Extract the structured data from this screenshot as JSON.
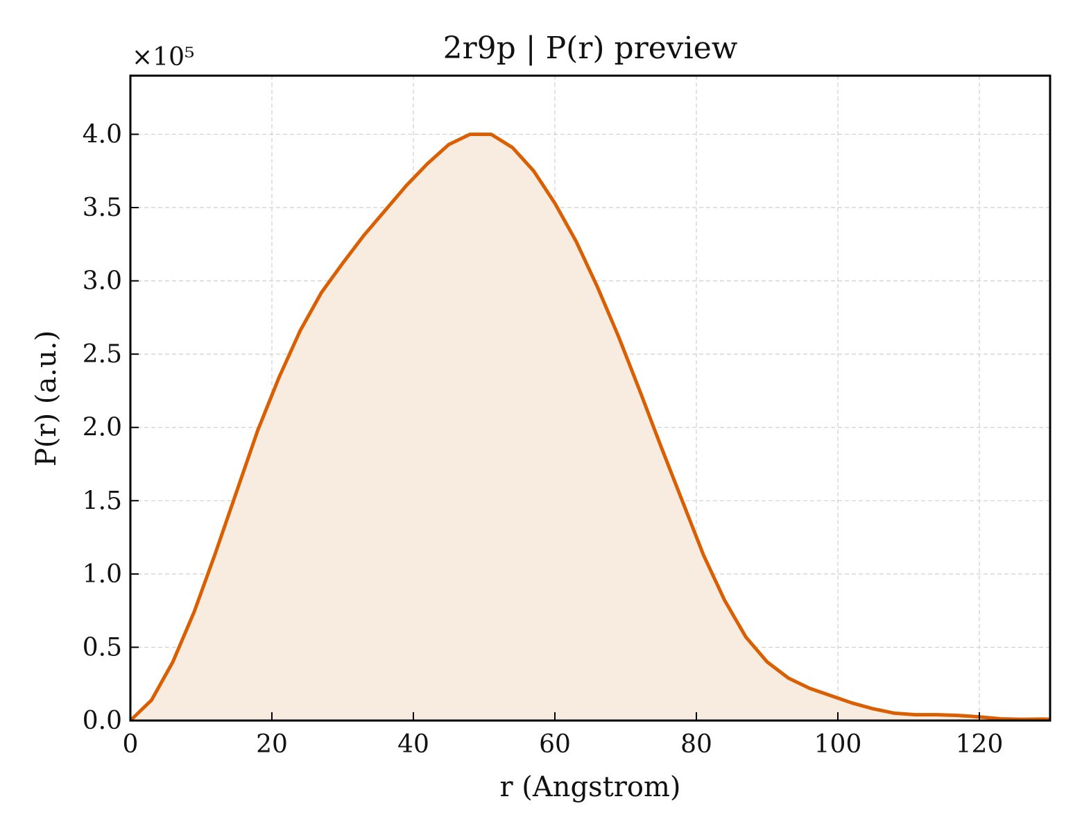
{
  "chart_data": {
    "type": "area",
    "title": "2r9p | P(r) preview",
    "xlabel": "r (Angstrom)",
    "ylabel": "P(r) (a.u.)",
    "y_multiplier_label": "×10⁵",
    "xlim": [
      0,
      130
    ],
    "ylim": [
      0,
      4.4
    ],
    "x_ticks": [
      0,
      20,
      40,
      60,
      80,
      100,
      120
    ],
    "y_ticks": [
      "0.0",
      "0.5",
      "1.0",
      "1.5",
      "2.0",
      "2.5",
      "3.0",
      "3.5",
      "4.0"
    ],
    "grid": true,
    "line_color": "#d95f02",
    "fill_color": "#f8ebe0",
    "series": [
      {
        "x": [
          0,
          3,
          6,
          9,
          12,
          15,
          18,
          21,
          24,
          27,
          30,
          33,
          36,
          39,
          42,
          45,
          48,
          51,
          54,
          57,
          60,
          63,
          66,
          69,
          72,
          75,
          78,
          81,
          84,
          87,
          90,
          93,
          96,
          99,
          102,
          105,
          108,
          111,
          114,
          117,
          120,
          123,
          126,
          129,
          130
        ],
        "y": [
          0.0,
          0.14,
          0.4,
          0.74,
          1.14,
          1.56,
          1.98,
          2.34,
          2.66,
          2.92,
          3.12,
          3.31,
          3.48,
          3.65,
          3.8,
          3.93,
          4.0,
          4.0,
          3.91,
          3.75,
          3.53,
          3.27,
          2.96,
          2.62,
          2.25,
          1.87,
          1.5,
          1.13,
          0.82,
          0.57,
          0.4,
          0.29,
          0.22,
          0.17,
          0.12,
          0.08,
          0.05,
          0.04,
          0.04,
          0.035,
          0.025,
          0.012,
          0.008,
          0.01,
          0.008
        ]
      }
    ]
  }
}
